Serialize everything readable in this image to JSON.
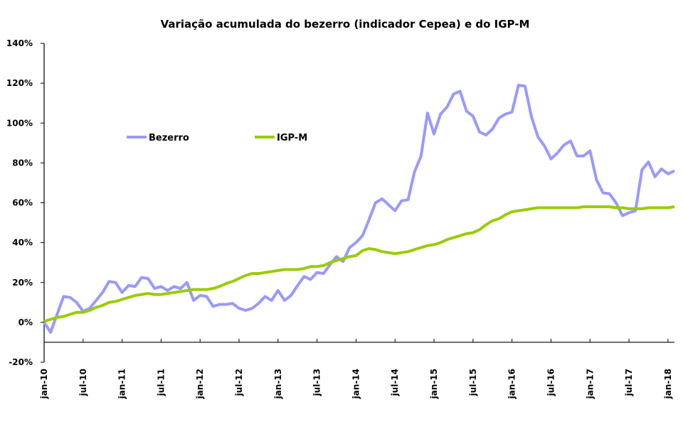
{
  "chart_data": {
    "type": "line",
    "title": "Variação acumulada do bezerro (indicador Cepea) e do IGP-M",
    "xlabel": "",
    "ylabel": "",
    "ylim": [
      -20,
      140
    ],
    "y_ticks": [
      "-20%",
      "0%",
      "20%",
      "40%",
      "60%",
      "80%",
      "100%",
      "120%",
      "140%"
    ],
    "y_tick_values": [
      -20,
      0,
      20,
      40,
      60,
      80,
      100,
      120,
      140
    ],
    "x_tick_labels": [
      "jan-10",
      "jul-10",
      "jan-11",
      "jul-11",
      "jan-12",
      "jul-12",
      "jan-13",
      "jul-13",
      "jan-14",
      "jul-14",
      "jan-15",
      "jul-15",
      "jan-16",
      "jul-16",
      "jan-17",
      "jul-17",
      "jan-18"
    ],
    "x_start": "jan-10",
    "x_end": "feb-18",
    "grid": false,
    "legend_placement": "top-left",
    "series": [
      {
        "name": "Bezerro",
        "color": "#9999ff",
        "values": [
          0,
          -5,
          4,
          13,
          12.5,
          10,
          5.5,
          7,
          11,
          15,
          20.5,
          20,
          15,
          18.5,
          18,
          22.5,
          22,
          17,
          18,
          16,
          18,
          17,
          20,
          11,
          13.5,
          13,
          8,
          9,
          9,
          9.5,
          7,
          6,
          7,
          9.5,
          13,
          11,
          16,
          11,
          13.5,
          18.5,
          23,
          21.5,
          25,
          24.5,
          29,
          33,
          30.5,
          37.5,
          40,
          43.5,
          51.5,
          60,
          62,
          59,
          56,
          61,
          61.5,
          75.5,
          83.5,
          105,
          94.5,
          104.5,
          108,
          114.5,
          116,
          106,
          103.5,
          95.5,
          94,
          97,
          102.5,
          104.5,
          105.5,
          119,
          118.5,
          103,
          93,
          88.5,
          82,
          85,
          89,
          91,
          83.5,
          83.5,
          86,
          71.5,
          65,
          64.5,
          60,
          53.5,
          55,
          56,
          76.5,
          80.5,
          73,
          77,
          74.5,
          76
        ]
      },
      {
        "name": "IGP-M",
        "color": "#99cc00",
        "values": [
          0.5,
          1.5,
          2.5,
          3,
          4,
          5,
          5,
          6,
          7.5,
          8.5,
          10,
          10.5,
          11.5,
          12.5,
          13.5,
          14,
          14.5,
          14,
          14,
          14.5,
          15,
          15.5,
          16,
          16.5,
          16.5,
          16.5,
          17,
          18,
          19.5,
          20.5,
          22,
          23.5,
          24.5,
          24.5,
          25,
          25.5,
          26,
          26.5,
          26.5,
          26.5,
          27,
          28,
          28,
          28.5,
          30,
          31,
          32,
          33,
          33.5,
          36,
          37,
          36.5,
          35.5,
          35,
          34.5,
          35,
          35.5,
          36.5,
          37.5,
          38.5,
          39,
          40,
          41.5,
          42.5,
          43.5,
          44.5,
          45,
          46.5,
          49,
          51,
          52,
          54,
          55.5,
          56,
          56.5,
          57,
          57.5,
          57.5,
          57.5,
          57.5,
          57.5,
          57.5,
          57.5,
          58,
          58,
          58,
          58,
          58,
          57.5,
          57.5,
          57,
          57,
          57,
          57.5,
          57.5,
          57.5,
          57.5,
          58
        ]
      }
    ]
  }
}
